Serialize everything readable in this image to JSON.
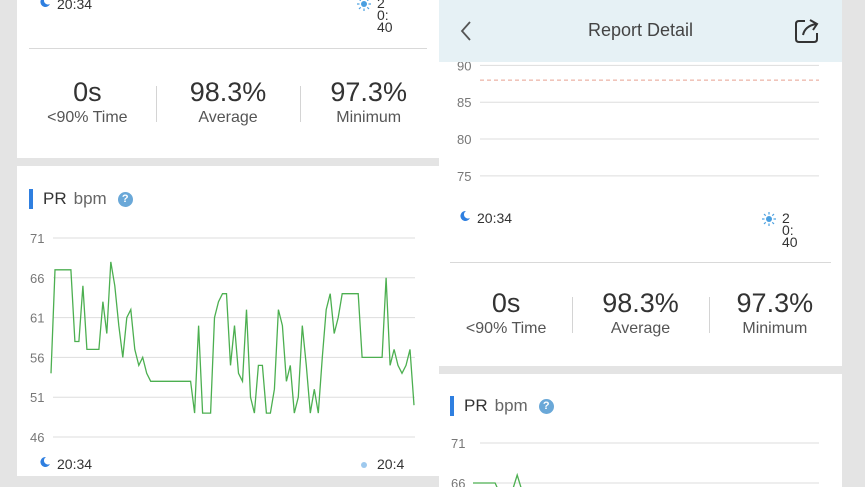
{
  "left": {
    "top_start_time": "20:34",
    "top_end_time": "20:40",
    "stats": [
      {
        "value": "0s",
        "label": "<90% Time"
      },
      {
        "value": "98.3%",
        "label": "Average"
      },
      {
        "value": "97.3%",
        "label": "Minimum"
      }
    ],
    "pr_title": "PR",
    "pr_unit": "bpm",
    "help_glyph": "?",
    "pr_start_time": "20:34",
    "pr_end_time": "20:4"
  },
  "right": {
    "nav_title": "Report Detail",
    "spo2_start_time": "20:34",
    "spo2_end_time": "20:40",
    "stats": [
      {
        "value": "0s",
        "label": "<90% Time"
      },
      {
        "value": "98.3%",
        "label": "Average"
      },
      {
        "value": "97.3%",
        "label": "Minimum"
      }
    ],
    "pr_title": "PR",
    "pr_unit": "bpm",
    "help_glyph": "?"
  },
  "colors": {
    "line": "#4caf50",
    "accent": "#2f7fe0",
    "threshold": "#e8a090",
    "navbar": "#e6f1f5"
  },
  "chart_data": [
    {
      "type": "line",
      "title": "PR bpm",
      "y_ticks": [
        71,
        66,
        61,
        56,
        51,
        46
      ],
      "ylim": [
        46,
        71
      ],
      "grid": true,
      "series": [
        {
          "values": [
            54,
            67,
            67,
            67,
            67,
            67,
            58,
            58,
            65,
            57,
            57,
            57,
            57,
            63,
            59,
            68,
            65,
            60,
            56,
            61,
            62,
            57,
            55,
            56,
            54,
            53,
            53,
            53,
            53,
            53,
            53,
            53,
            53,
            53,
            53,
            53,
            49,
            60,
            49,
            49,
            49,
            61,
            63,
            64,
            64,
            55,
            60,
            54,
            53,
            62,
            51,
            49,
            55,
            55,
            49,
            49,
            52,
            62,
            60,
            53,
            55,
            49,
            51,
            60,
            55,
            49,
            52,
            49,
            56,
            62,
            64,
            59,
            61,
            64,
            64,
            64,
            64,
            64,
            56,
            56,
            56,
            56,
            56,
            56,
            66,
            55,
            57,
            55,
            54,
            55,
            57,
            50
          ]
        }
      ]
    },
    {
      "type": "line",
      "title": "SpO2",
      "y_ticks": [
        90,
        85,
        80,
        75
      ],
      "ylim": [
        72,
        91
      ],
      "threshold": 88,
      "grid": true,
      "series": []
    },
    {
      "type": "line",
      "title": "PR bpm",
      "y_ticks": [
        71,
        66
      ],
      "ylim": [
        46,
        71
      ],
      "grid": true,
      "series": [
        {
          "values": [
            66,
            66,
            66,
            66,
            64,
            64,
            67,
            64,
            64,
            64,
            64,
            64,
            64,
            64,
            64,
            64,
            64,
            64,
            64,
            64,
            64,
            64,
            64,
            64,
            64,
            64,
            64,
            64,
            64,
            64,
            64,
            64,
            64,
            64,
            64,
            64,
            64,
            64,
            64,
            64,
            64,
            64,
            64,
            64,
            64,
            64,
            65,
            64
          ]
        }
      ]
    }
  ]
}
